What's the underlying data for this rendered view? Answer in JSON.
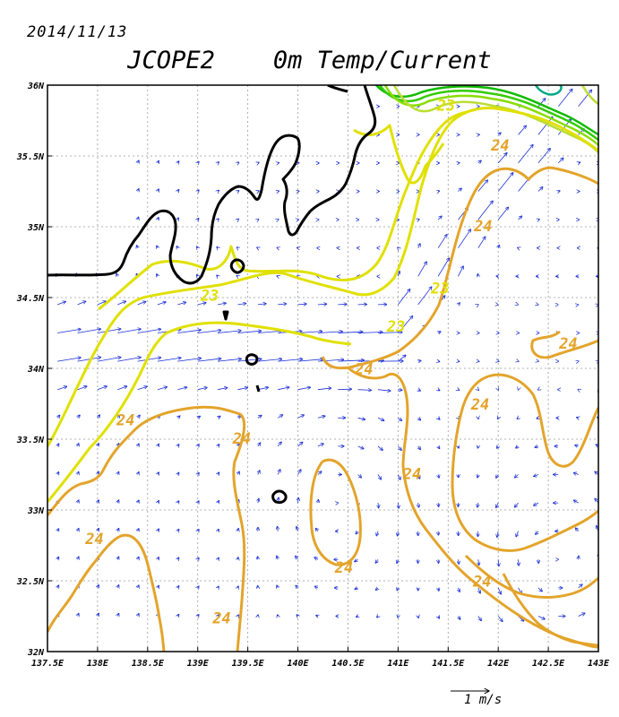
{
  "header": {
    "date": "2014/11/13",
    "title": "JCOPE2    0m Temp/Current"
  },
  "axes": {
    "lon_ticks": [
      "137.5E",
      "138E",
      "138.5E",
      "139E",
      "139.5E",
      "140E",
      "140.5E",
      "141E",
      "141.5E",
      "142E",
      "142.5E",
      "143E"
    ],
    "lat_ticks": [
      "36N",
      "35.5N",
      "35N",
      "34.5N",
      "34N",
      "33.5N",
      "33N",
      "32.5N",
      "32N"
    ],
    "lon_range": [
      137.5,
      143.0
    ],
    "lat_range": [
      32.0,
      36.0
    ],
    "grid": "dotted"
  },
  "contour_labels": [
    {
      "text": "23",
      "lon": 139.12,
      "lat": 34.51,
      "color": "#e0e000"
    },
    {
      "text": "23",
      "lon": 141.42,
      "lat": 34.56,
      "color": "#e0e000"
    },
    {
      "text": "23",
      "lon": 140.98,
      "lat": 34.29,
      "color": "#e0e000"
    },
    {
      "text": "23",
      "lon": 141.48,
      "lat": 35.85,
      "color": "#e0e000"
    },
    {
      "text": "24",
      "lon": 142.02,
      "lat": 35.57,
      "color": "#e3a42b"
    },
    {
      "text": "24",
      "lon": 141.85,
      "lat": 35.0,
      "color": "#e3a42b"
    },
    {
      "text": "24",
      "lon": 142.7,
      "lat": 34.17,
      "color": "#e3a42b"
    },
    {
      "text": "24",
      "lon": 140.66,
      "lat": 33.99,
      "color": "#e3a42b"
    },
    {
      "text": "24",
      "lon": 141.82,
      "lat": 33.74,
      "color": "#e3a42b"
    },
    {
      "text": "24",
      "lon": 138.28,
      "lat": 33.63,
      "color": "#e3a42b"
    },
    {
      "text": "24",
      "lon": 139.44,
      "lat": 33.5,
      "color": "#e3a42b"
    },
    {
      "text": "24",
      "lon": 141.14,
      "lat": 33.25,
      "color": "#e3a42b"
    },
    {
      "text": "24",
      "lon": 137.97,
      "lat": 32.79,
      "color": "#e3a42b"
    },
    {
      "text": "24",
      "lon": 140.46,
      "lat": 32.59,
      "color": "#e3a42b"
    },
    {
      "text": "24",
      "lon": 141.84,
      "lat": 32.49,
      "color": "#e3a42b"
    },
    {
      "text": "24",
      "lon": 139.24,
      "lat": 32.23,
      "color": "#e3a42b"
    }
  ],
  "scale_vector": {
    "label": "1 m/s"
  },
  "colors": {
    "coast": "#000000",
    "isotherm_23": "#e0e000",
    "isotherm_24": "#e3a42b",
    "cold_contours": [
      "#11bb00",
      "#33cc00",
      "#88dd00",
      "#bbdd33",
      "#00aa88"
    ],
    "vectors": "#1a2fd6"
  }
}
